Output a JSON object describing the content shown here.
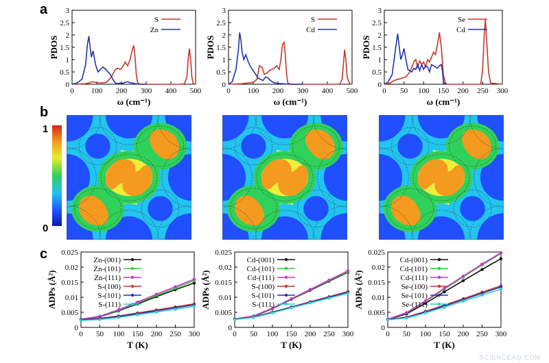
{
  "figure": {
    "panel_labels": [
      "a",
      "b",
      "c"
    ],
    "watermark": "SCIENCEAQ.COM"
  },
  "colorbar": {
    "max_label": "1",
    "min_label": "0"
  },
  "chart_data": [
    {
      "id": "a1",
      "type": "line",
      "panel": "a",
      "xlabel": "ω (cm⁻¹)",
      "ylabel": "PDOS",
      "xlim": [
        0,
        500
      ],
      "ylim": [
        0,
        3
      ],
      "xticks": [
        0,
        100,
        200,
        300,
        400,
        500
      ],
      "yticks": [
        0,
        0.5,
        1,
        1.5,
        2,
        2.5,
        3
      ],
      "series": [
        {
          "name": "S",
          "color": "#c0392b",
          "x": [
            0,
            50,
            70,
            80,
            100,
            120,
            140,
            160,
            175,
            185,
            195,
            205,
            215,
            225,
            235,
            245,
            250,
            255,
            260,
            265,
            270,
            280,
            440,
            455,
            465,
            470,
            475,
            480,
            485,
            490,
            500
          ],
          "y": [
            0,
            0.02,
            0.05,
            0.1,
            0.07,
            0.05,
            0.08,
            0.3,
            0.6,
            0.65,
            0.6,
            0.7,
            0.9,
            0.75,
            1.0,
            1.45,
            1.55,
            1.1,
            0.4,
            0.08,
            0.02,
            0,
            0,
            0.02,
            0.3,
            1.0,
            1.45,
            1.0,
            0.3,
            0.02,
            0
          ]
        },
        {
          "name": "Zn",
          "color": "#2433a8",
          "x": [
            0,
            20,
            40,
            55,
            62,
            68,
            72,
            78,
            85,
            95,
            105,
            115,
            125,
            135,
            145,
            155,
            165,
            175,
            185,
            195,
            205,
            215,
            225,
            235,
            245,
            255,
            265,
            275,
            300
          ],
          "y": [
            0,
            0.05,
            0.2,
            0.8,
            1.6,
            1.95,
            1.6,
            1.1,
            1.35,
            0.8,
            0.5,
            0.6,
            0.7,
            0.62,
            0.5,
            0.4,
            0.2,
            0.05,
            0.02,
            0.05,
            0.04,
            0.08,
            0.1,
            0.06,
            0.05,
            0.02,
            0.01,
            0,
            0
          ]
        }
      ]
    },
    {
      "id": "a2",
      "type": "line",
      "panel": "a",
      "xlabel": "ω (cm⁻¹)",
      "ylabel": "PDOS",
      "xlim": [
        0,
        500
      ],
      "ylim": [
        0,
        3
      ],
      "xticks": [
        0,
        100,
        200,
        300,
        400,
        500
      ],
      "yticks": [
        0,
        0.5,
        1,
        1.5,
        2,
        2.5,
        3
      ],
      "series": [
        {
          "name": "S",
          "color": "#c0392b",
          "x": [
            0,
            50,
            80,
            100,
            115,
            125,
            135,
            145,
            155,
            165,
            175,
            185,
            195,
            205,
            212,
            218,
            225,
            230,
            235,
            240,
            250,
            450,
            460,
            465,
            470,
            475,
            480,
            490,
            500
          ],
          "y": [
            0,
            0.02,
            0.05,
            0.08,
            0.2,
            0.75,
            0.7,
            0.4,
            0.45,
            0.55,
            0.6,
            0.65,
            0.75,
            0.6,
            1.0,
            1.6,
            1.7,
            1.2,
            0.4,
            0.05,
            0,
            0,
            0.2,
            0.8,
            1.4,
            1.0,
            0.3,
            0.02,
            0
          ]
        },
        {
          "name": "Cd",
          "color": "#2433a8",
          "x": [
            0,
            15,
            30,
            40,
            45,
            50,
            55,
            62,
            70,
            80,
            90,
            100,
            110,
            120,
            130,
            140,
            150,
            160,
            170,
            180,
            190,
            200,
            220,
            250,
            300
          ],
          "y": [
            0,
            0.1,
            0.6,
            1.4,
            2.1,
            1.8,
            1.3,
            1.0,
            1.2,
            0.9,
            0.7,
            0.55,
            0.4,
            0.25,
            0.2,
            0.15,
            0.3,
            0.25,
            0.15,
            0.08,
            0.05,
            0.03,
            0.02,
            0,
            0
          ]
        }
      ]
    },
    {
      "id": "a3",
      "type": "line",
      "panel": "a",
      "xlabel": "ω (cm⁻¹)",
      "ylabel": "PDOS",
      "xlim": [
        0,
        300
      ],
      "ylim": [
        0,
        3
      ],
      "xticks": [
        0,
        50,
        100,
        150,
        200,
        250,
        300
      ],
      "yticks": [
        0,
        0.5,
        1,
        1.5,
        2,
        2.5,
        3
      ],
      "series": [
        {
          "name": "Se",
          "color": "#c0392b",
          "x": [
            0,
            15,
            25,
            35,
            45,
            55,
            65,
            75,
            80,
            85,
            90,
            95,
            100,
            105,
            110,
            115,
            120,
            125,
            130,
            135,
            140,
            145,
            150,
            155,
            160,
            245,
            250,
            254,
            257,
            260,
            265,
            270,
            300
          ],
          "y": [
            0,
            0.05,
            0.15,
            0.2,
            0.25,
            0.3,
            0.5,
            0.9,
            1.0,
            0.7,
            0.95,
            0.8,
            0.9,
            0.7,
            1.0,
            0.9,
            1.1,
            1.3,
            1.2,
            1.6,
            2.1,
            1.5,
            0.4,
            0.05,
            0,
            0,
            0.6,
            2.0,
            2.65,
            1.8,
            0.5,
            0.05,
            0
          ]
        },
        {
          "name": "Cd",
          "color": "#2433a8",
          "x": [
            0,
            10,
            20,
            25,
            30,
            34,
            38,
            42,
            46,
            50,
            55,
            60,
            65,
            70,
            75,
            80,
            85,
            90,
            95,
            100,
            105,
            110,
            115,
            120,
            125,
            130,
            135,
            140,
            145,
            148,
            150,
            155,
            160
          ],
          "y": [
            0,
            0.1,
            0.4,
            1.0,
            1.6,
            2.05,
            1.5,
            1.0,
            1.2,
            1.45,
            1.0,
            0.6,
            0.55,
            0.5,
            0.65,
            0.6,
            0.8,
            0.55,
            0.8,
            0.6,
            0.75,
            0.7,
            0.5,
            0.8,
            0.75,
            0.7,
            0.65,
            0.75,
            0.8,
            0.5,
            0.1,
            0.02,
            0
          ]
        }
      ]
    },
    {
      "id": "c1",
      "type": "line",
      "panel": "c",
      "xlabel": "T (K)",
      "ylabel": "ADPs (Å²)",
      "xlim": [
        0,
        300
      ],
      "ylim": [
        0,
        0.025
      ],
      "xticks": [
        0,
        50,
        100,
        150,
        200,
        250,
        300
      ],
      "yticks": [
        0,
        0.005,
        0.01,
        0.015,
        0.02,
        0.025
      ],
      "ytick_labels": [
        "0",
        "0.005",
        "0.01",
        "0.015",
        "0.02",
        "0.025"
      ],
      "x": [
        0,
        50,
        100,
        150,
        200,
        250,
        300
      ],
      "series": [
        {
          "name": "Zn-(001)",
          "color": "#111111",
          "y": [
            0.0027,
            0.0035,
            0.0055,
            0.0078,
            0.0102,
            0.0125,
            0.0147
          ]
        },
        {
          "name": "Zn-(101)",
          "color": "#33cc33",
          "y": [
            0.0027,
            0.0036,
            0.0057,
            0.0081,
            0.0106,
            0.013,
            0.0155
          ]
        },
        {
          "name": "Zn-(111)",
          "color": "#cc33cc",
          "y": [
            0.0027,
            0.0037,
            0.0059,
            0.0084,
            0.011,
            0.0135,
            0.016
          ]
        },
        {
          "name": "S-(100)",
          "color": "#c0392b",
          "y": [
            0.0026,
            0.003,
            0.0038,
            0.0048,
            0.0058,
            0.0068,
            0.0078
          ]
        },
        {
          "name": "S-(101)",
          "color": "#2433a8",
          "y": [
            0.0025,
            0.0029,
            0.0036,
            0.0045,
            0.0055,
            0.0065,
            0.0075
          ]
        },
        {
          "name": "S-(111)",
          "color": "#33cccc",
          "y": [
            0.0023,
            0.0026,
            0.0033,
            0.0042,
            0.0051,
            0.006,
            0.007
          ]
        }
      ]
    },
    {
      "id": "c2",
      "type": "line",
      "panel": "c",
      "xlabel": "T (K)",
      "ylabel": "ADPs (Å²)",
      "xlim": [
        0,
        300
      ],
      "ylim": [
        0,
        0.025
      ],
      "xticks": [
        0,
        50,
        100,
        150,
        200,
        250,
        300
      ],
      "yticks": [
        0,
        0.005,
        0.01,
        0.015,
        0.02,
        0.025
      ],
      "ytick_labels": [
        "0",
        "0.005",
        "0.01",
        "0.015",
        "0.02",
        "0.025"
      ],
      "x": [
        0,
        50,
        100,
        150,
        200,
        250,
        300
      ],
      "series": [
        {
          "name": "Cd-(001)",
          "color": "#111111",
          "y": [
            0.0028,
            0.0036,
            0.0062,
            0.0093,
            0.0123,
            0.0153,
            0.0183
          ]
        },
        {
          "name": "Cd-(101)",
          "color": "#33cc33",
          "y": [
            0.0028,
            0.0037,
            0.0063,
            0.0094,
            0.0125,
            0.0155,
            0.0185
          ]
        },
        {
          "name": "Cd-(111)",
          "color": "#cc33cc",
          "y": [
            0.0028,
            0.0038,
            0.0064,
            0.0095,
            0.0126,
            0.0157,
            0.0188
          ]
        },
        {
          "name": "S-(100)",
          "color": "#c0392b",
          "y": [
            0.0027,
            0.0035,
            0.0051,
            0.0068,
            0.0085,
            0.0102,
            0.0119
          ]
        },
        {
          "name": "S-(101)",
          "color": "#2433a8",
          "y": [
            0.0027,
            0.0034,
            0.005,
            0.0067,
            0.0084,
            0.01,
            0.0117
          ]
        },
        {
          "name": "S-(111)",
          "color": "#33cccc",
          "y": [
            0.0026,
            0.0033,
            0.0048,
            0.0065,
            0.0081,
            0.0097,
            0.0113
          ]
        }
      ]
    },
    {
      "id": "c3",
      "type": "line",
      "panel": "c",
      "xlabel": "T (K)",
      "ylabel": "ADPs (Å²)",
      "xlim": [
        0,
        300
      ],
      "ylim": [
        0,
        0.025
      ],
      "xticks": [
        0,
        50,
        100,
        150,
        200,
        250,
        300
      ],
      "yticks": [
        0,
        0.005,
        0.01,
        0.015,
        0.02,
        0.025
      ],
      "ytick_labels": [
        "0",
        "0.005",
        "0.01",
        "0.015",
        "0.02",
        "0.025"
      ],
      "x": [
        0,
        50,
        100,
        150,
        200,
        250,
        300
      ],
      "series": [
        {
          "name": "Cd-(001)",
          "color": "#111111",
          "y": [
            0.0026,
            0.0045,
            0.008,
            0.0118,
            0.0155,
            0.0192,
            0.0228
          ]
        },
        {
          "name": "Cd-(101)",
          "color": "#33cc33",
          "y": [
            0.0027,
            0.0048,
            0.0086,
            0.0127,
            0.0167,
            0.0207,
            0.0245
          ]
        },
        {
          "name": "Cd-(111)",
          "color": "#cc33cc",
          "y": [
            0.0027,
            0.0049,
            0.0088,
            0.013,
            0.017,
            0.021,
            0.0248
          ]
        },
        {
          "name": "Se-(100)",
          "color": "#c0392b",
          "y": [
            0.0026,
            0.0034,
            0.0053,
            0.0074,
            0.0095,
            0.0117,
            0.0138
          ]
        },
        {
          "name": "Se-(101)",
          "color": "#2433a8",
          "y": [
            0.0026,
            0.0033,
            0.0051,
            0.0071,
            0.0092,
            0.0113,
            0.0134
          ]
        },
        {
          "name": "Se-(111)",
          "color": "#33cccc",
          "y": [
            0.0025,
            0.0031,
            0.0048,
            0.0067,
            0.0087,
            0.0107,
            0.0127
          ]
        }
      ]
    }
  ]
}
